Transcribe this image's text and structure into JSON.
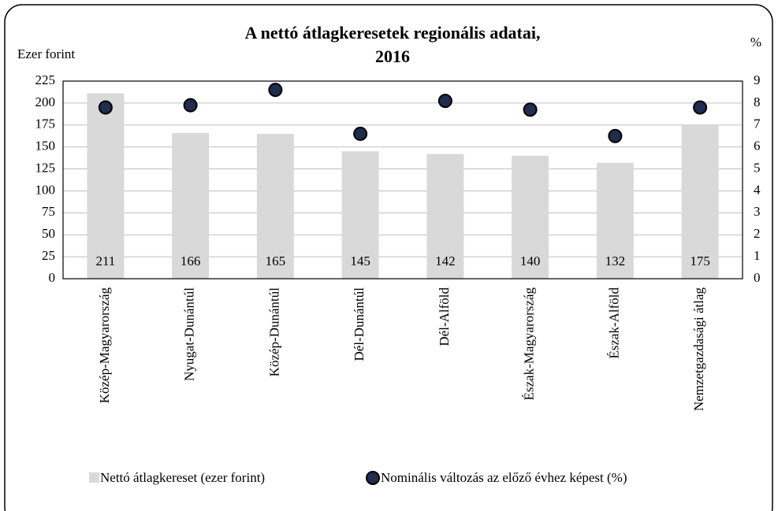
{
  "chart_data": {
    "type": "bar",
    "title": [
      "A nettó átlagkeresetek regionális adatai,",
      "2016"
    ],
    "y_label": "Ezer forint",
    "y2_label": "%",
    "categories": [
      "Közép-Magyarország",
      "Nyugat-Dunántúl",
      "Közép-Dunántúl",
      "Dél-Dunántúl",
      "Dél-Alföld",
      "Észak-Magyarország",
      "Észak-Alföld",
      "Nemzetgazdasági átlag"
    ],
    "series": [
      {
        "name": "Nettó átlagkereset (ezer forint)",
        "type": "bar",
        "color": "#d9d9d9",
        "axis": "y",
        "values": [
          211,
          166,
          165,
          145,
          142,
          140,
          132,
          175
        ]
      },
      {
        "name": "Nominális változás az előző évhez képest (%)",
        "type": "scatter",
        "color": "#1f2d4e",
        "axis": "y2",
        "values": [
          7.8,
          7.9,
          8.6,
          6.6,
          8.1,
          7.7,
          6.5,
          7.8
        ]
      }
    ],
    "ylim": [
      0,
      225
    ],
    "yticks": [
      0,
      25,
      50,
      75,
      100,
      125,
      150,
      175,
      200,
      225
    ],
    "y2lim": [
      0,
      9
    ],
    "y2ticks": [
      0,
      1,
      2,
      3,
      4,
      5,
      6,
      7,
      8,
      9
    ],
    "grid": true,
    "legend": "bottom"
  }
}
